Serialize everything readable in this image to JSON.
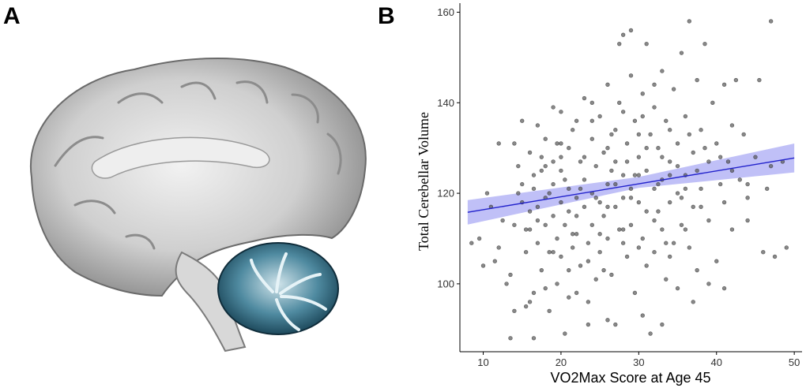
{
  "panels": {
    "a_label": "A",
    "b_label": "B"
  },
  "figure_a": {
    "icon": "brain-sagittal-cerebellum-highlight",
    "highlight_color": "#2a5d73"
  },
  "chart_data": {
    "type": "scatter",
    "xlabel": "VO2Max Score at Age 45",
    "ylabel": "Total Cerebellar Volume",
    "xlim": [
      7,
      51
    ],
    "ylim": [
      85,
      162
    ],
    "xticks": [
      10,
      20,
      30,
      40,
      50
    ],
    "yticks": [
      100,
      120,
      140,
      160
    ],
    "grid": false,
    "point_color": "#555555",
    "fit_color": "#2222cc",
    "ci_color": "#8c8cf0",
    "fit_line": {
      "x": [
        8,
        50
      ],
      "y": [
        115.8,
        127.8
      ]
    },
    "ci_band": {
      "x": [
        8,
        30,
        50
      ],
      "upper": [
        118.5,
        123.6,
        131.0
      ],
      "lower": [
        113.1,
        121.2,
        124.6
      ]
    },
    "points": [
      [
        8.5,
        109
      ],
      [
        9.5,
        110
      ],
      [
        10,
        104
      ],
      [
        10.5,
        120
      ],
      [
        11,
        117
      ],
      [
        11.5,
        105
      ],
      [
        12,
        108
      ],
      [
        12.5,
        114
      ],
      [
        13,
        100
      ],
      [
        13.5,
        102
      ],
      [
        13.5,
        88
      ],
      [
        14,
        131
      ],
      [
        14,
        113
      ],
      [
        14.5,
        126
      ],
      [
        15,
        118
      ],
      [
        15,
        122
      ],
      [
        15.5,
        107
      ],
      [
        15.5,
        95
      ],
      [
        16,
        129
      ],
      [
        16,
        112
      ],
      [
        16,
        96
      ],
      [
        16.5,
        98
      ],
      [
        16.5,
        121
      ],
      [
        17,
        135
      ],
      [
        17,
        117
      ],
      [
        17,
        109
      ],
      [
        17.5,
        125
      ],
      [
        17.5,
        103
      ],
      [
        18,
        119
      ],
      [
        18,
        113
      ],
      [
        18,
        132
      ],
      [
        18.5,
        107
      ],
      [
        18.5,
        94
      ],
      [
        19,
        127
      ],
      [
        19,
        115
      ],
      [
        19,
        122
      ],
      [
        19.5,
        110
      ],
      [
        19.5,
        100
      ],
      [
        20,
        138
      ],
      [
        20,
        118
      ],
      [
        20,
        106
      ],
      [
        20,
        125
      ],
      [
        20.5,
        113
      ],
      [
        20.5,
        89
      ],
      [
        21,
        130
      ],
      [
        21,
        116
      ],
      [
        21,
        121
      ],
      [
        21.5,
        108
      ],
      [
        21.5,
        134
      ],
      [
        22,
        111
      ],
      [
        22,
        119
      ],
      [
        22,
        98
      ],
      [
        22.5,
        127
      ],
      [
        22.5,
        104
      ],
      [
        23,
        141
      ],
      [
        23,
        117
      ],
      [
        23,
        123
      ],
      [
        23.5,
        109
      ],
      [
        23.5,
        96
      ],
      [
        24,
        132
      ],
      [
        24,
        120
      ],
      [
        24,
        113
      ],
      [
        24.5,
        126
      ],
      [
        24.5,
        101
      ],
      [
        25,
        137
      ],
      [
        25,
        118
      ],
      [
        25,
        107
      ],
      [
        25.5,
        129
      ],
      [
        25.5,
        115
      ],
      [
        26,
        144
      ],
      [
        26,
        122
      ],
      [
        26,
        110
      ],
      [
        26.5,
        133
      ],
      [
        26.5,
        102
      ],
      [
        27,
        127
      ],
      [
        27,
        117
      ],
      [
        27,
        91
      ],
      [
        27.5,
        140
      ],
      [
        27.5,
        112
      ],
      [
        28,
        155
      ],
      [
        28,
        124
      ],
      [
        28,
        119
      ],
      [
        28.5,
        131
      ],
      [
        28.5,
        106
      ],
      [
        29,
        146
      ],
      [
        29,
        121
      ],
      [
        29,
        113
      ],
      [
        29.5,
        136
      ],
      [
        29.5,
        98
      ],
      [
        30,
        128
      ],
      [
        30,
        118
      ],
      [
        30,
        124
      ],
      [
        30.5,
        142
      ],
      [
        30.5,
        110
      ],
      [
        31,
        153
      ],
      [
        31,
        125
      ],
      [
        31,
        116
      ],
      [
        31.5,
        133
      ],
      [
        31.5,
        89
      ],
      [
        32,
        139
      ],
      [
        32,
        121
      ],
      [
        32,
        107
      ],
      [
        32.5,
        130
      ],
      [
        32.5,
        116
      ],
      [
        33,
        147
      ],
      [
        33,
        123
      ],
      [
        33,
        112
      ],
      [
        33.5,
        136
      ],
      [
        33.5,
        101
      ],
      [
        34,
        127
      ],
      [
        34,
        118
      ],
      [
        34.5,
        143
      ],
      [
        34.5,
        109
      ],
      [
        35,
        131
      ],
      [
        35,
        120
      ],
      [
        35.5,
        151
      ],
      [
        35.5,
        113
      ],
      [
        36,
        137
      ],
      [
        36,
        124
      ],
      [
        36.5,
        158
      ],
      [
        36.5,
        108
      ],
      [
        37,
        129
      ],
      [
        37,
        117
      ],
      [
        37.5,
        145
      ],
      [
        37.5,
        103
      ],
      [
        38,
        134
      ],
      [
        38,
        121
      ],
      [
        38.5,
        153
      ],
      [
        39,
        127
      ],
      [
        39,
        114
      ],
      [
        39.5,
        140
      ],
      [
        40,
        131
      ],
      [
        40,
        105
      ],
      [
        40.5,
        122
      ],
      [
        41,
        144
      ],
      [
        41,
        118
      ],
      [
        41.5,
        127
      ],
      [
        42,
        135
      ],
      [
        42,
        112
      ],
      [
        42.5,
        145
      ],
      [
        43,
        123
      ],
      [
        43.5,
        133
      ],
      [
        44,
        119
      ],
      [
        45,
        128
      ],
      [
        45.5,
        145
      ],
      [
        46,
        107
      ],
      [
        46.5,
        121
      ],
      [
        47,
        158
      ],
      [
        47,
        126
      ],
      [
        47.5,
        106
      ],
      [
        48.5,
        127
      ],
      [
        49,
        108
      ],
      [
        12,
        131
      ],
      [
        14,
        94
      ],
      [
        15,
        136
      ],
      [
        16.5,
        88
      ],
      [
        18,
        99
      ],
      [
        19,
        139
      ],
      [
        21,
        97
      ],
      [
        23.5,
        91
      ],
      [
        26,
        92
      ],
      [
        27.5,
        153
      ],
      [
        29,
        156
      ],
      [
        30.5,
        93
      ],
      [
        33,
        91
      ],
      [
        35,
        99
      ],
      [
        37,
        96
      ],
      [
        39,
        100
      ],
      [
        41,
        99
      ],
      [
        44,
        114
      ],
      [
        20,
        128
      ],
      [
        24,
        136
      ],
      [
        27,
        134
      ],
      [
        30,
        133
      ],
      [
        33,
        128
      ],
      [
        36,
        121
      ],
      [
        21,
        103
      ],
      [
        25,
        111
      ],
      [
        28,
        109
      ],
      [
        31,
        104
      ],
      [
        34,
        106
      ],
      [
        22,
        115
      ],
      [
        26,
        117
      ],
      [
        29,
        119
      ],
      [
        32,
        114
      ],
      [
        35,
        126
      ],
      [
        17.5,
        128
      ],
      [
        19.5,
        131
      ],
      [
        23,
        128
      ],
      [
        26.5,
        125
      ],
      [
        28.5,
        127
      ],
      [
        31,
        130
      ],
      [
        34,
        124
      ],
      [
        37.5,
        125
      ],
      [
        16,
        116
      ],
      [
        18.5,
        120
      ],
      [
        20.5,
        123
      ],
      [
        22.5,
        121
      ],
      [
        24.5,
        119
      ],
      [
        27,
        122
      ],
      [
        29.5,
        124
      ],
      [
        32.5,
        122
      ],
      [
        35.5,
        119
      ],
      [
        38,
        117
      ],
      [
        15.5,
        112
      ],
      [
        17,
        114
      ],
      [
        19,
        107
      ],
      [
        21.5,
        111
      ],
      [
        23.5,
        105
      ],
      [
        25.5,
        103
      ],
      [
        28,
        112
      ],
      [
        30,
        108
      ],
      [
        33.5,
        109
      ],
      [
        36,
        112
      ],
      [
        14.5,
        120
      ],
      [
        16.5,
        124
      ],
      [
        18,
        126
      ],
      [
        20,
        131
      ],
      [
        22,
        136
      ],
      [
        24,
        140
      ],
      [
        26,
        130
      ],
      [
        28,
        138
      ],
      [
        30.5,
        137
      ],
      [
        32,
        144
      ],
      [
        34,
        134
      ],
      [
        36.5,
        133
      ],
      [
        38.5,
        130
      ],
      [
        40.5,
        128
      ],
      [
        42,
        125
      ],
      [
        44,
        122
      ]
    ]
  }
}
